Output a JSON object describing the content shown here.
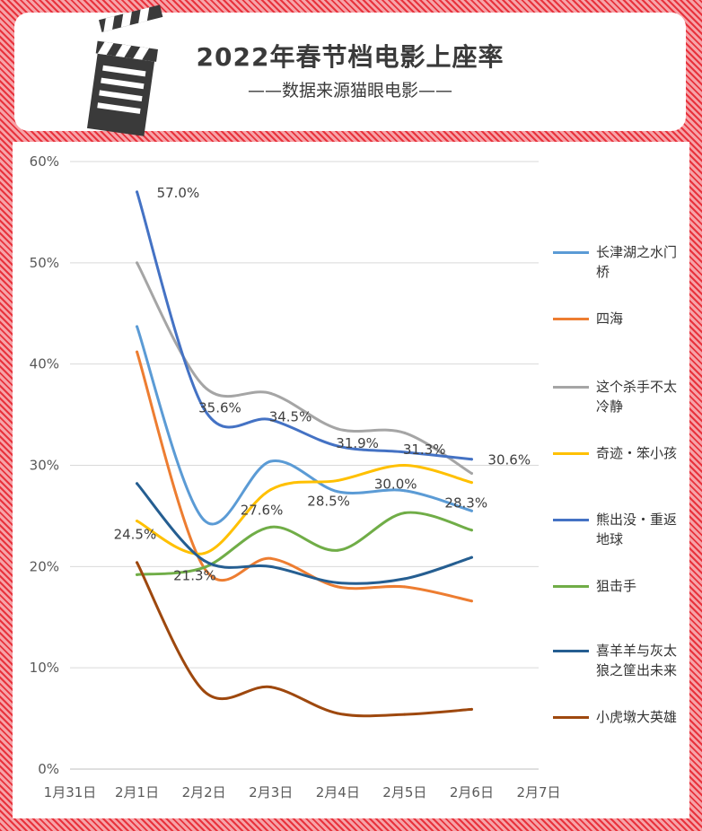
{
  "header": {
    "title": "2022年春节档电影上座率",
    "subtitle": "——数据来源猫眼电影——"
  },
  "icons": {
    "clapperboard": "clapperboard-icon"
  },
  "colors": {
    "frame": "#e8323c",
    "grid": "#d9d9d9",
    "axis_text": "#595959"
  },
  "chart_data": {
    "type": "line",
    "title": "2022年春节档电影上座率",
    "categories": [
      "1月31日",
      "2月1日",
      "2月2日",
      "2月3日",
      "2月4日",
      "2月5日",
      "2月6日",
      "2月7日"
    ],
    "ylim": [
      0,
      60
    ],
    "yticks": [
      "0%",
      "10%",
      "20%",
      "30%",
      "40%",
      "50%",
      "60%"
    ],
    "grid": true,
    "legend": "right",
    "series": [
      {
        "name": "长津湖之水门桥",
        "color": "#5b9bd5",
        "values": [
          null,
          43.7,
          24.6,
          30.4,
          27.4,
          27.5,
          25.5,
          null
        ]
      },
      {
        "name": "四海",
        "color": "#ed7d31",
        "values": [
          null,
          41.2,
          19.9,
          20.8,
          18.0,
          18.0,
          16.6,
          null
        ]
      },
      {
        "name": "这个杀手不太冷静",
        "color": "#a5a5a5",
        "values": [
          null,
          50.0,
          37.8,
          37.1,
          33.6,
          33.2,
          29.2,
          null
        ]
      },
      {
        "name": "奇迹・笨小孩",
        "color": "#ffc000",
        "values": [
          null,
          24.5,
          21.3,
          27.6,
          28.5,
          30.0,
          28.3,
          null
        ]
      },
      {
        "name": "熊出没・重返地球",
        "color": "#4472c4",
        "values": [
          null,
          57.0,
          35.6,
          34.5,
          31.9,
          31.3,
          30.6,
          null
        ]
      },
      {
        "name": "狙击手",
        "color": "#70ad47",
        "values": [
          null,
          19.2,
          19.9,
          23.9,
          21.6,
          25.3,
          23.6,
          null
        ]
      },
      {
        "name": "喜羊羊与灰太狼之筐出未来",
        "color": "#255e91",
        "values": [
          null,
          28.2,
          20.6,
          20.0,
          18.4,
          18.8,
          20.9,
          null
        ]
      },
      {
        "name": "小虎墩大英雄",
        "color": "#9e480e",
        "values": [
          null,
          20.4,
          7.7,
          8.1,
          5.5,
          5.4,
          5.9,
          null
        ]
      }
    ],
    "data_labels": [
      {
        "text": "57.0%",
        "x": "2月1日",
        "y": 57.0
      },
      {
        "text": "35.6%",
        "x": "2月2日",
        "y": 35.6
      },
      {
        "text": "34.5%",
        "x": "2月3日",
        "y": 34.5
      },
      {
        "text": "31.9%",
        "x": "2月4日",
        "y": 31.9
      },
      {
        "text": "31.3%",
        "x": "2月5日",
        "y": 31.3
      },
      {
        "text": "30.6%",
        "x": "2月6日",
        "y": 30.6
      },
      {
        "text": "24.5%",
        "x": "2月1日",
        "y": 24.5
      },
      {
        "text": "21.3%",
        "x": "2月2日",
        "y": 21.3
      },
      {
        "text": "27.6%",
        "x": "2月3日",
        "y": 27.6
      },
      {
        "text": "28.5%",
        "x": "2月4日",
        "y": 28.5
      },
      {
        "text": "30.0%",
        "x": "2月5日",
        "y": 30.0
      },
      {
        "text": "28.3%",
        "x": "2月6日",
        "y": 28.3
      }
    ]
  }
}
